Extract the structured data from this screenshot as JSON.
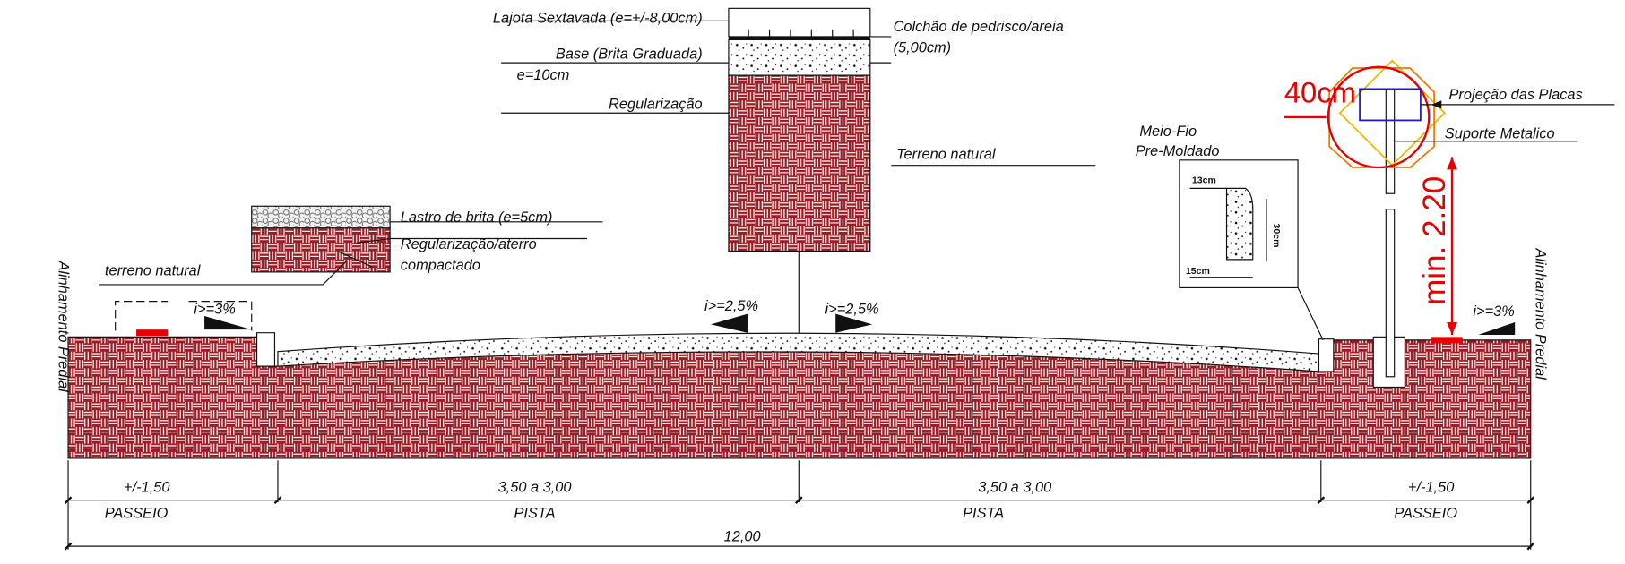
{
  "pavement_layers": {
    "paver": "Lajota Sextavada (e=+/-8,00cm)",
    "bedding": [
      "Colchão de pedrisco/areia",
      "(5,00cm)"
    ],
    "base": [
      "Base (Brita Graduada)",
      "e=10cm"
    ],
    "subgrade": "Regularização",
    "natural_ground": "Terreno natural"
  },
  "sidewalk_layers": {
    "gravel": "Lastro de brita (e=5cm)",
    "compacted": [
      "Regularização/aterro",
      "compactado"
    ],
    "natural_ground": "terreno natural"
  },
  "curb": {
    "title": [
      "Meio-Fio",
      "Pre-Moldado"
    ],
    "dims": [
      "13cm",
      "30cm",
      "15cm"
    ]
  },
  "sign": {
    "plates": "Projeção das Placas",
    "support": "Suporte Metalico",
    "offset": "40cm",
    "height": "min. 2.20"
  },
  "slopes": [
    "i>=3%",
    "i>=2,5%",
    "i>=2,5%",
    "i>=3%"
  ],
  "property_lines": [
    "Alinhamento Predial",
    "Alinhamento Predial"
  ],
  "dimensions": {
    "segments": [
      {
        "length": "+/-1,50",
        "label": "PASSEIO"
      },
      {
        "length": "3,50 a 3,00",
        "label": "PISTA"
      },
      {
        "length": "3,50 a 3,00",
        "label": "PISTA"
      },
      {
        "length": "+/-1,50",
        "label": "PASSEIO"
      }
    ],
    "total": "12,00"
  }
}
